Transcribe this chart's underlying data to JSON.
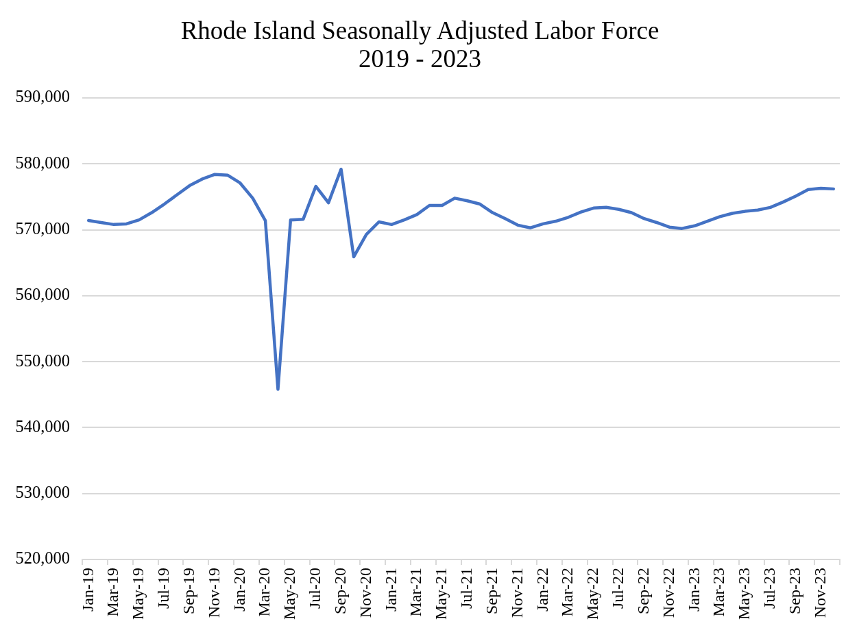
{
  "chart_data": {
    "type": "line",
    "title": "Rhode Island Seasonally Adjusted Labor Force",
    "subtitle": "2019 - 2023",
    "categories": [
      "Jan-19",
      null,
      "Mar-19",
      null,
      "May-19",
      null,
      "Jul-19",
      null,
      "Sep-19",
      null,
      "Nov-19",
      null,
      "Jan-20",
      null,
      "Mar-20",
      null,
      "May-20",
      null,
      "Jul-20",
      null,
      "Sep-20",
      null,
      "Nov-20",
      null,
      "Jan-21",
      null,
      "Mar-21",
      null,
      "May-21",
      null,
      "Jul-21",
      null,
      "Sep-21",
      null,
      "Nov-21",
      null,
      "Jan-22",
      null,
      "Mar-22",
      null,
      "May-22",
      null,
      "Jul-22",
      null,
      "Sep-22",
      null,
      "Nov-22",
      null,
      "Jan-23",
      null,
      "Mar-23",
      null,
      "May-23",
      null,
      "Jul-23",
      null,
      "Sep-23",
      null,
      "Nov-23",
      null
    ],
    "values": [
      571400,
      571100,
      570800,
      570900,
      571500,
      572600,
      573900,
      575300,
      576700,
      577700,
      578400,
      578300,
      577100,
      574800,
      571400,
      545800,
      571500,
      571600,
      576600,
      574100,
      579200,
      565900,
      569300,
      571200,
      570800,
      571500,
      572300,
      573700,
      573700,
      574800,
      574400,
      573900,
      572600,
      571700,
      570700,
      570300,
      570900,
      571300,
      571900,
      572700,
      573300,
      573400,
      573100,
      572600,
      571700,
      571100,
      570400,
      570200,
      570600,
      571300,
      572000,
      572500,
      572800,
      573000,
      573400,
      574200,
      575100,
      576100,
      576300,
      576200
    ],
    "color": "#4472c4",
    "ylim": [
      520000,
      590000
    ],
    "yticks": [
      {
        "value": 520000,
        "label": "520,000"
      },
      {
        "value": 530000,
        "label": "530,000"
      },
      {
        "value": 540000,
        "label": "540,000"
      },
      {
        "value": 550000,
        "label": "550,000"
      },
      {
        "value": 560000,
        "label": "560,000"
      },
      {
        "value": 570000,
        "label": "570,000"
      },
      {
        "value": 580000,
        "label": "580,000"
      },
      {
        "value": 590000,
        "label": "590,000"
      }
    ],
    "grid": "y",
    "marker": "none",
    "line_style": "solid"
  }
}
